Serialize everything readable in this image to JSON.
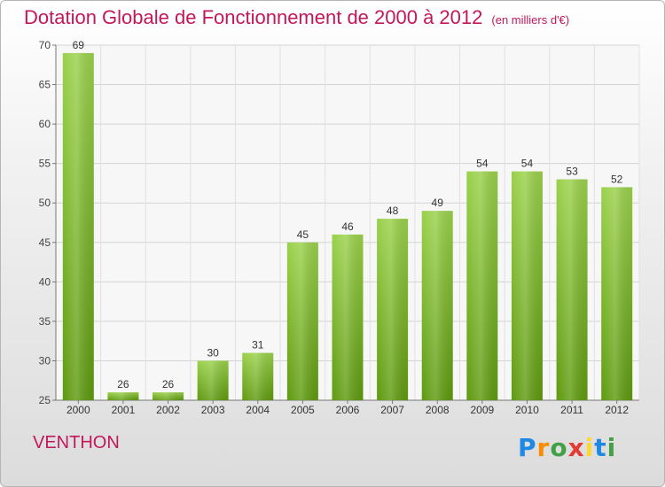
{
  "title": "Dotation Globale de Fonctionnement de 2000 à 2012",
  "unit_note": "(en milliers d'€)",
  "region_name": "VENTHON",
  "logo": {
    "text": "Proxiti",
    "letters": [
      "P",
      "r",
      "o",
      "x",
      "i",
      "t",
      "i"
    ],
    "colors": [
      "#1e88e5",
      "#fb8c00",
      "#43a047",
      "#e53935",
      "#fdd835",
      "#1e88e5",
      "#43a047"
    ]
  },
  "colors": {
    "accent": "#c2185b",
    "bar_top": "#9ad14b",
    "bar_bottom": "#5f9a10"
  },
  "chart_data": {
    "type": "bar",
    "categories": [
      "2000",
      "2001",
      "2002",
      "2003",
      "2004",
      "2005",
      "2006",
      "2007",
      "2008",
      "2009",
      "2010",
      "2011",
      "2012"
    ],
    "values": [
      69,
      26,
      26,
      30,
      31,
      45,
      46,
      48,
      49,
      54,
      54,
      53,
      52
    ],
    "ylim": [
      25,
      70
    ],
    "yticks": [
      25,
      30,
      35,
      40,
      45,
      50,
      55,
      60,
      65,
      70
    ],
    "grid": true,
    "xlabel": "",
    "ylabel": ""
  }
}
